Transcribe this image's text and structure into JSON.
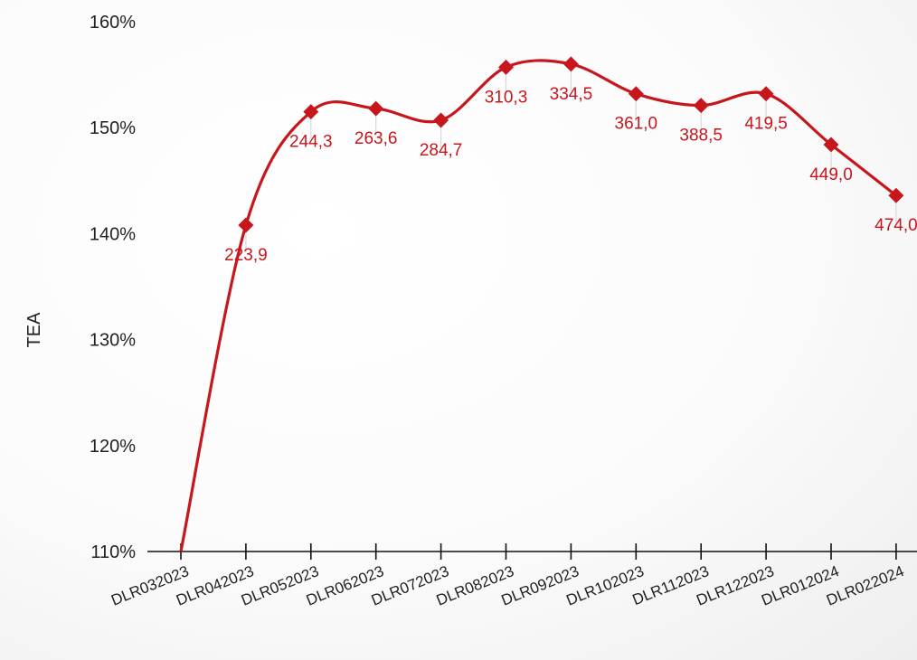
{
  "chart_data": {
    "type": "line",
    "ylabel": "TEA",
    "xlabel": "",
    "ylim": [
      110,
      160
    ],
    "y_ticks": [
      110,
      120,
      130,
      140,
      150,
      160
    ],
    "y_tick_labels": [
      "110%",
      "120%",
      "130%",
      "140%",
      "150%",
      "160%"
    ],
    "categories": [
      "DLR032023",
      "DLR042023",
      "DLR052023",
      "DLR062023",
      "DLR072023",
      "DLR082023",
      "DLR092023",
      "DLR102023",
      "DLR112023",
      "DLR122023",
      "DLR012024",
      "DLR022024"
    ],
    "series": [
      {
        "name": "",
        "color": "#c8161d",
        "values": [
          110.0,
          140.8,
          151.5,
          151.8,
          150.7,
          155.7,
          156.0,
          153.2,
          152.1,
          153.2,
          148.4,
          143.6
        ],
        "data_labels": [
          "",
          "223,9",
          "244,3",
          "263,6",
          "284,7",
          "310,3",
          "334,5",
          "361,0",
          "388,5",
          "419,5",
          "449,0",
          "474,0"
        ]
      }
    ],
    "grid": false,
    "legend": "none"
  }
}
